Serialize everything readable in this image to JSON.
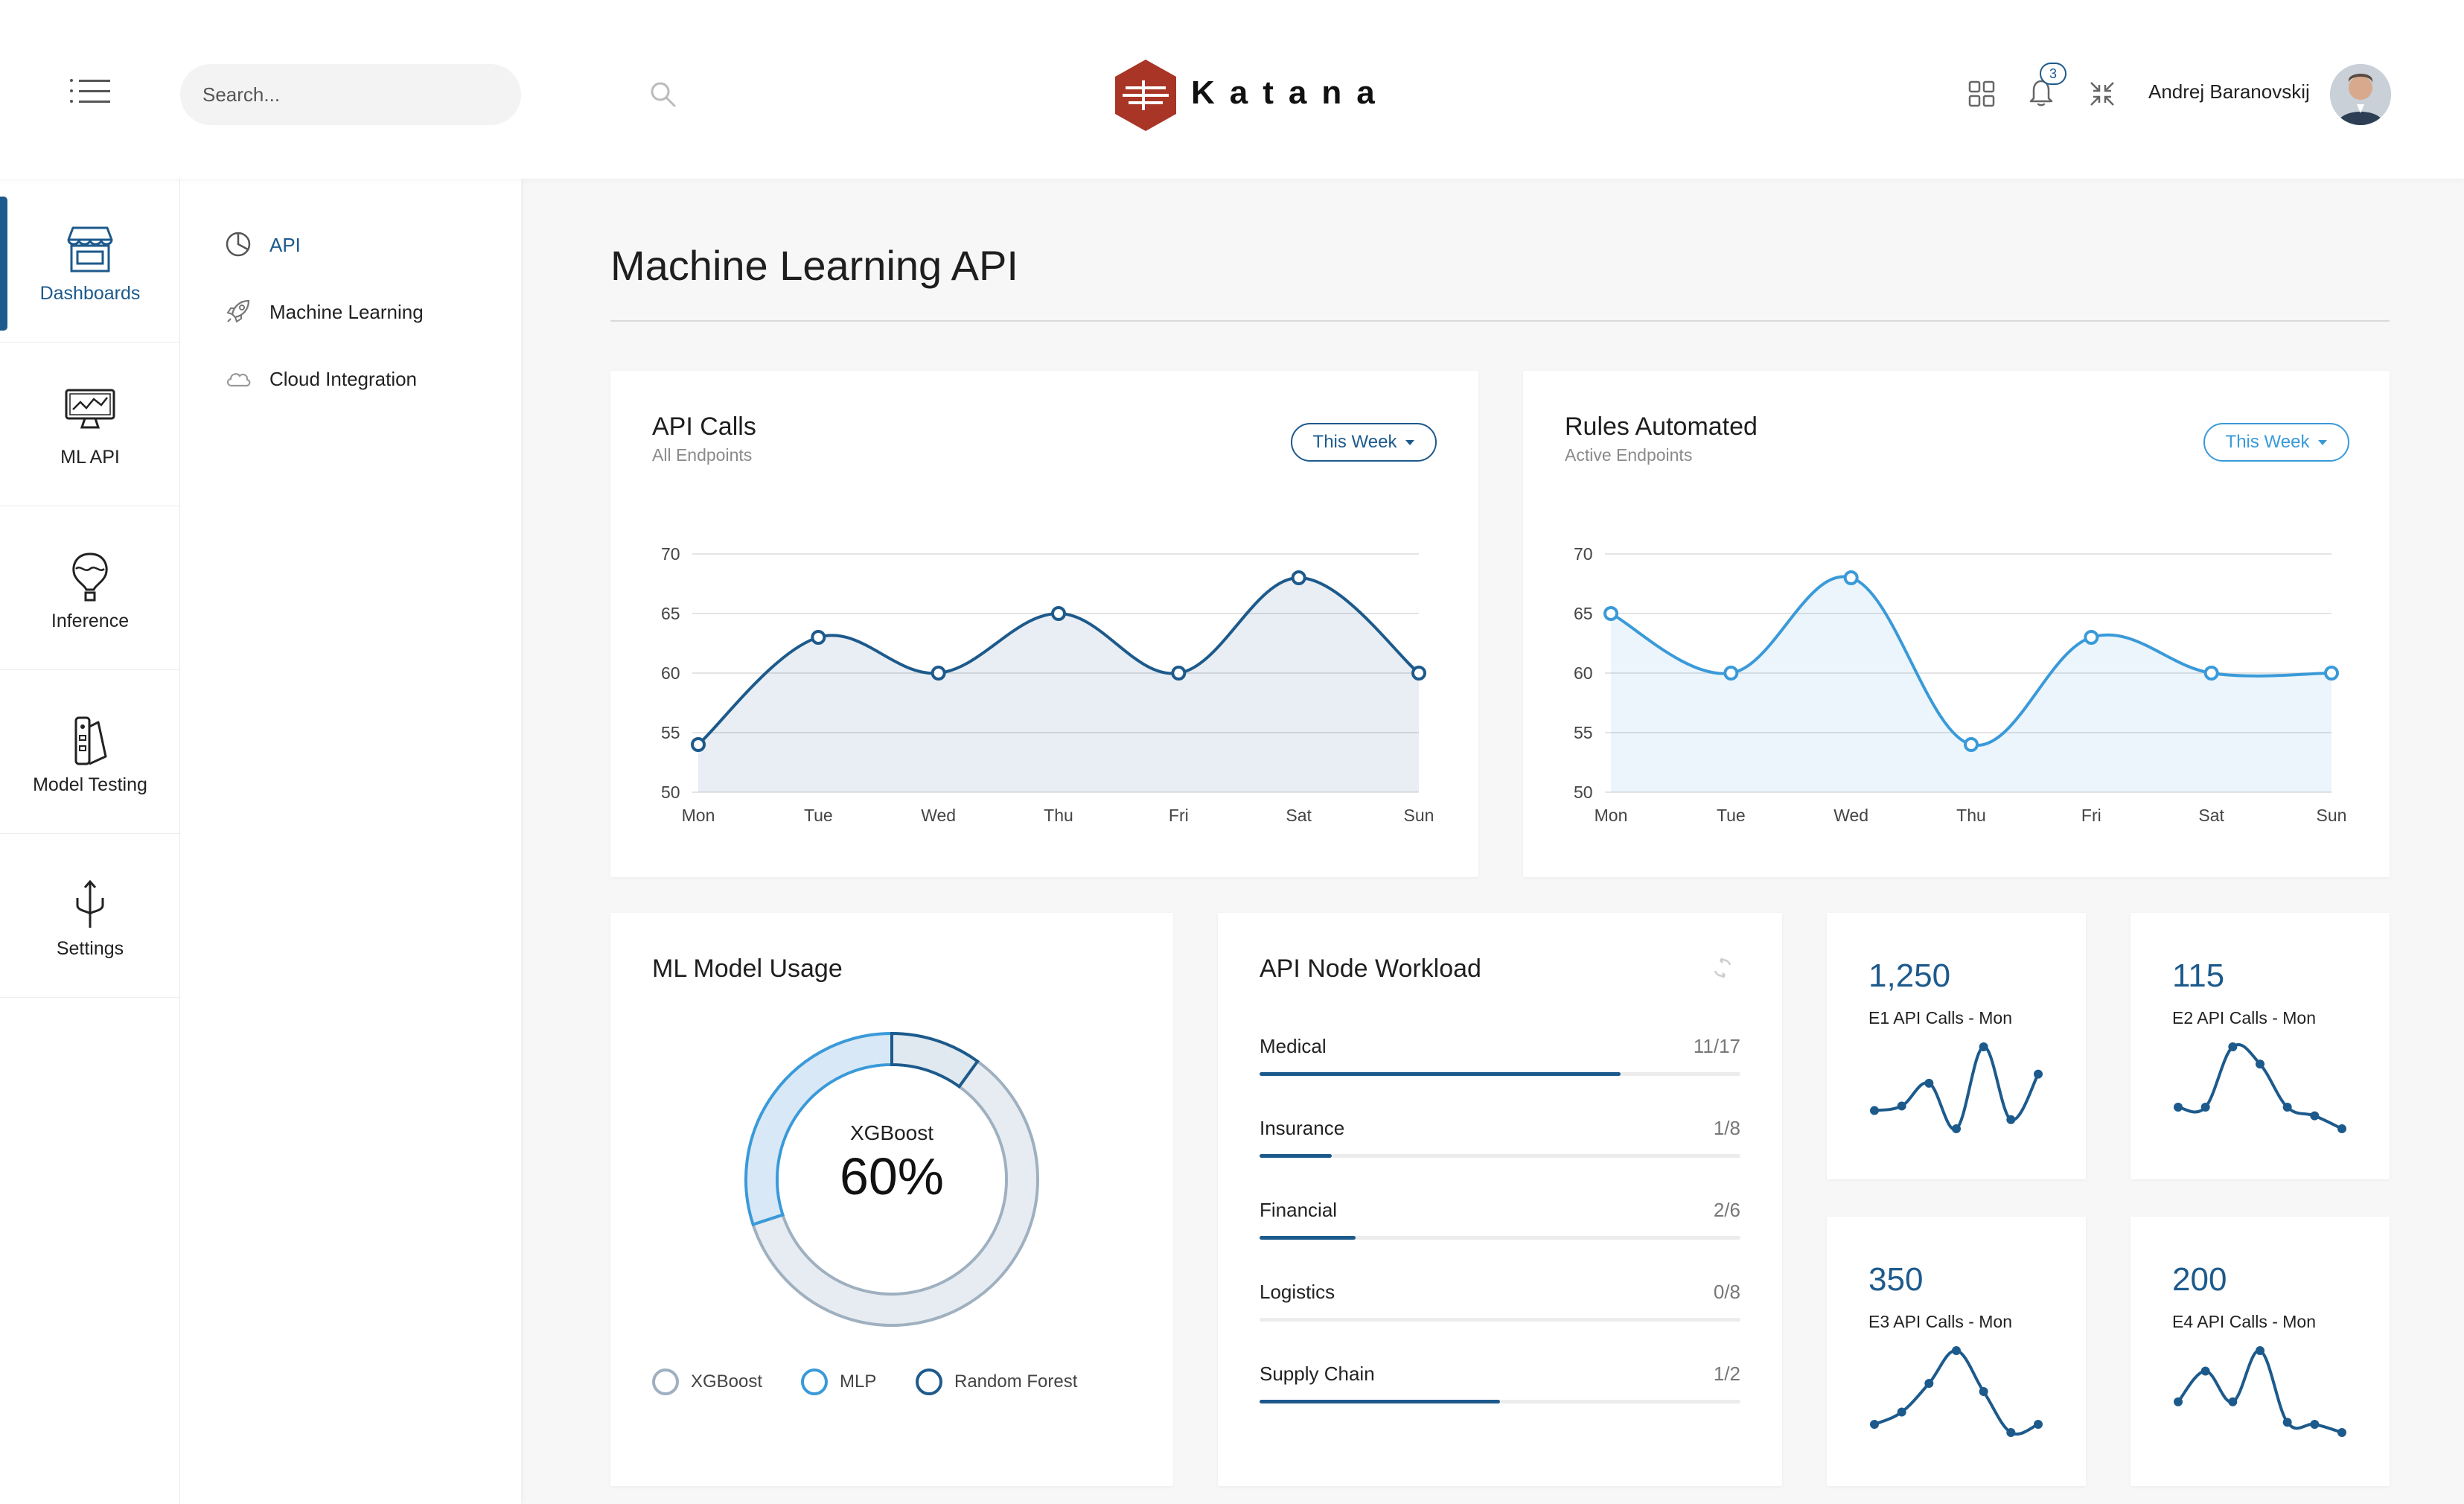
{
  "header": {
    "search_placeholder": "Search...",
    "brand": "Katana",
    "notifications_count": "3",
    "user_name": "Andrej Baranovskij"
  },
  "rail": {
    "items": [
      {
        "label": "Dashboards",
        "active": true
      },
      {
        "label": "ML API"
      },
      {
        "label": "Inference"
      },
      {
        "label": "Model Testing"
      },
      {
        "label": "Settings"
      }
    ]
  },
  "subnav": {
    "items": [
      {
        "label": "API",
        "active": true
      },
      {
        "label": "Machine Learning"
      },
      {
        "label": "Cloud Integration"
      }
    ]
  },
  "main": {
    "title": "Machine Learning API"
  },
  "colors": {
    "primary": "#1d5a8c",
    "light_blue": "#3a9ad9"
  },
  "api_calls": {
    "title": "API Calls",
    "subtitle": "All Endpoints",
    "period": "This Week"
  },
  "rules_automated": {
    "title": "Rules Automated",
    "subtitle": "Active Endpoints",
    "period": "This Week"
  },
  "model_usage": {
    "title": "ML Model Usage",
    "center_label": "XGBoost",
    "center_value": "60%",
    "legend": [
      "XGBoost",
      "MLP",
      "Random Forest"
    ]
  },
  "node_workload": {
    "title": "API Node Workload",
    "rows": [
      {
        "name": "Medical",
        "count": "11/17",
        "fill": 0.75
      },
      {
        "name": "Insurance",
        "count": "1/8",
        "fill": 0.15
      },
      {
        "name": "Financial",
        "count": "2/6",
        "fill": 0.2
      },
      {
        "name": "Logistics",
        "count": "0/8",
        "fill": 0
      },
      {
        "name": "Supply Chain",
        "count": "1/2",
        "fill": 0.5
      }
    ]
  },
  "mini_cards": [
    {
      "value": "1,250",
      "label": "E1 API Calls - Mon"
    },
    {
      "value": "115",
      "label": "E2 API Calls - Mon"
    },
    {
      "value": "350",
      "label": "E3 API Calls - Mon"
    },
    {
      "value": "200",
      "label": "E4 API Calls - Mon"
    }
  ],
  "chart_data": [
    {
      "type": "area",
      "title": "API Calls",
      "categories": [
        "Mon",
        "Tue",
        "Wed",
        "Thu",
        "Fri",
        "Sat",
        "Sun"
      ],
      "series": [
        {
          "values": [
            54,
            63,
            60,
            65,
            60,
            68,
            60
          ]
        }
      ],
      "ylim": [
        50,
        70
      ],
      "yticks": [
        70,
        65,
        60,
        55,
        50
      ],
      "grid": true
    },
    {
      "type": "area",
      "title": "Rules Automated",
      "categories": [
        "Mon",
        "Tue",
        "Wed",
        "Thu",
        "Fri",
        "Sat",
        "Sun"
      ],
      "series": [
        {
          "values": [
            65,
            60,
            68,
            54,
            63,
            60,
            60
          ]
        }
      ],
      "ylim": [
        50,
        70
      ],
      "yticks": [
        70,
        65,
        60,
        55,
        50
      ],
      "grid": true
    },
    {
      "type": "pie",
      "title": "ML Model Usage",
      "categories": [
        "XGBoost",
        "MLP",
        "Random Forest"
      ],
      "values": [
        60,
        30,
        10
      ]
    },
    {
      "type": "line",
      "categories": [
        "1",
        "2",
        "3",
        "4",
        "5",
        "6",
        "7"
      ],
      "values": [
        3,
        3.5,
        6,
        1,
        10,
        2,
        7
      ]
    },
    {
      "type": "line",
      "categories": [
        "1",
        "2",
        "3",
        "4",
        "5",
        "6",
        "7"
      ],
      "values": [
        3,
        3,
        10,
        8,
        3,
        2,
        0.5
      ]
    },
    {
      "type": "line",
      "categories": [
        "1",
        "2",
        "3",
        "4",
        "5",
        "6",
        "7"
      ],
      "values": [
        1,
        2.5,
        6,
        10,
        5,
        0,
        1
      ]
    },
    {
      "type": "line",
      "categories": [
        "1",
        "2",
        "3",
        "4",
        "5",
        "6",
        "7"
      ],
      "values": [
        3,
        6,
        3,
        8,
        1,
        0.8,
        0
      ]
    }
  ]
}
